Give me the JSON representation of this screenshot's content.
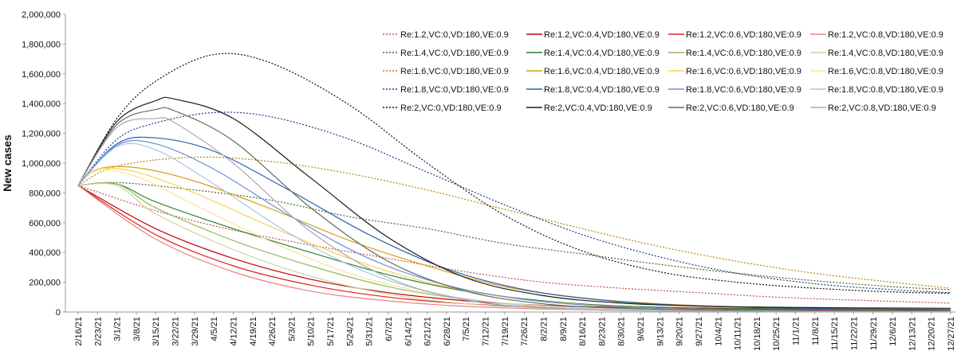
{
  "chart_data": {
    "type": "line",
    "title": "",
    "xlabel": "",
    "ylabel": "New cases",
    "ylim": [
      0,
      2000000
    ],
    "yticks": [
      0,
      200000,
      400000,
      600000,
      800000,
      1000000,
      1200000,
      1400000,
      1600000,
      1800000,
      2000000
    ],
    "ytick_labels": [
      "0",
      "200,000",
      "400,000",
      "600,000",
      "800,000",
      "1,000,000",
      "1,200,000",
      "1,400,000",
      "1,600,000",
      "1,800,000",
      "2,000,000"
    ],
    "x_tick_labels": [
      "2/16/21",
      "2/23/21",
      "3/1/21",
      "3/8/21",
      "3/15/21",
      "3/22/21",
      "3/29/21",
      "4/5/21",
      "4/12/21",
      "4/19/21",
      "4/26/21",
      "5/3/21",
      "5/10/21",
      "5/17/21",
      "5/24/21",
      "5/31/21",
      "6/7/21",
      "6/14/21",
      "6/21/21",
      "6/28/21",
      "7/5/21",
      "7/12/21",
      "7/19/21",
      "7/26/21",
      "8/2/21",
      "8/9/21",
      "8/16/21",
      "8/23/21",
      "8/30/21",
      "9/6/21",
      "9/13/21",
      "9/20/21",
      "9/27/21",
      "10/4/21",
      "10/11/21",
      "10/18/21",
      "10/25/21",
      "11/1/21",
      "11/8/21",
      "11/15/21",
      "11/22/21",
      "11/29/21",
      "12/6/21",
      "12/13/21",
      "12/20/21",
      "12/27/21"
    ],
    "grid": false,
    "legend_position": "top-right",
    "series": [
      {
        "name": "Re:1.2,VC:0,VD:180,VE:0.9",
        "color": "#c0504d",
        "dash": "dotted",
        "x": [
          "2/16/21",
          "3/15/21",
          "4/12/21",
          "5/10/21",
          "6/7/21",
          "7/5/21",
          "8/2/21",
          "8/30/21",
          "9/27/21",
          "10/25/21",
          "11/22/21",
          "12/27/21"
        ],
        "y": [
          850000,
          680000,
          550000,
          450000,
          360000,
          270000,
          200000,
          160000,
          130000,
          100000,
          80000,
          60000
        ]
      },
      {
        "name": "Re:1.2,VC:0.4,VD:180,VE:0.9",
        "color": "#c00000",
        "dash": "solid",
        "x": [
          "2/16/21",
          "3/15/21",
          "4/12/21",
          "5/10/21",
          "6/7/21",
          "7/5/21",
          "8/2/21",
          "8/30/21",
          "9/27/21",
          "10/25/21",
          "11/22/21",
          "12/27/21"
        ],
        "y": [
          850000,
          560000,
          360000,
          220000,
          130000,
          75000,
          45000,
          30000,
          22000,
          18000,
          15000,
          12000
        ]
      },
      {
        "name": "Re:1.2,VC:0.6,VD:180,VE:0.9",
        "color": "#e02020",
        "dash": "solid",
        "x": [
          "2/16/21",
          "3/15/21",
          "4/12/21",
          "5/10/21",
          "6/7/21",
          "7/5/21",
          "8/2/21",
          "8/30/21",
          "9/27/21",
          "10/25/21",
          "11/22/21",
          "12/27/21"
        ],
        "y": [
          850000,
          520000,
          310000,
          180000,
          100000,
          55000,
          32000,
          20000,
          15000,
          12000,
          10000,
          8000
        ]
      },
      {
        "name": "Re:1.2,VC:0.8,VD:180,VE:0.9",
        "color": "#f08080",
        "dash": "solid",
        "x": [
          "2/16/21",
          "3/15/21",
          "4/12/21",
          "5/10/21",
          "6/7/21",
          "7/5/21",
          "8/2/21",
          "8/30/21",
          "9/27/21",
          "10/25/21",
          "11/22/21",
          "12/27/21"
        ],
        "y": [
          850000,
          490000,
          270000,
          140000,
          75000,
          38000,
          20000,
          12000,
          8000,
          6000,
          5000,
          4000
        ]
      },
      {
        "name": "Re:1.4,VC:0,VD:180,VE:0.9",
        "color": "#4f6228",
        "dash": "dotted",
        "x": [
          "2/16/21",
          "3/1/21",
          "3/29/21",
          "4/26/21",
          "5/24/21",
          "6/21/21",
          "7/19/21",
          "8/16/21",
          "9/13/21",
          "10/11/21",
          "11/8/21",
          "12/6/21",
          "12/27/21"
        ],
        "y": [
          850000,
          870000,
          820000,
          750000,
          640000,
          560000,
          460000,
          390000,
          320000,
          260000,
          210000,
          170000,
          150000
        ]
      },
      {
        "name": "Re:1.4,VC:0.4,VD:180,VE:0.9",
        "color": "#2e7d32",
        "dash": "solid",
        "x": [
          "2/16/21",
          "3/1/21",
          "3/15/21",
          "4/12/21",
          "5/10/21",
          "6/7/21",
          "7/5/21",
          "8/2/21",
          "8/30/21",
          "9/27/21",
          "10/25/21",
          "11/22/21",
          "12/27/21"
        ],
        "y": [
          850000,
          860000,
          740000,
          560000,
          400000,
          250000,
          140000,
          75000,
          40000,
          28000,
          22000,
          18000,
          15000
        ]
      },
      {
        "name": "Re:1.4,VC:0.6,VD:180,VE:0.9",
        "color": "#8fbc5a",
        "dash": "solid",
        "x": [
          "2/16/21",
          "3/1/21",
          "3/15/21",
          "4/12/21",
          "5/10/21",
          "6/7/21",
          "7/5/21",
          "8/2/21",
          "8/30/21",
          "9/27/21",
          "10/25/21",
          "11/22/21",
          "12/27/21"
        ],
        "y": [
          850000,
          860000,
          700000,
          480000,
          310000,
          170000,
          85000,
          42000,
          22000,
          14000,
          10000,
          8000,
          6000
        ]
      },
      {
        "name": "Re:1.4,VC:0.8,VD:180,VE:0.9",
        "color": "#c4d79b",
        "dash": "solid",
        "x": [
          "2/16/21",
          "3/1/21",
          "3/15/21",
          "4/12/21",
          "5/10/21",
          "6/7/21",
          "7/5/21",
          "8/2/21",
          "8/30/21",
          "9/27/21",
          "10/25/21",
          "11/22/21",
          "12/27/21"
        ],
        "y": [
          850000,
          850000,
          660000,
          420000,
          240000,
          120000,
          55000,
          25000,
          12000,
          7000,
          5000,
          4000,
          3000
        ]
      },
      {
        "name": "Re:1.6,VC:0,VD:180,VE:0.9",
        "color": "#b8860b",
        "dash": "dotted",
        "x": [
          "2/16/21",
          "3/1/21",
          "3/29/21",
          "4/26/21",
          "5/24/21",
          "6/21/21",
          "7/19/21",
          "8/16/21",
          "9/13/21",
          "10/11/21",
          "11/8/21",
          "12/6/21",
          "12/27/21"
        ],
        "y": [
          850000,
          980000,
          1040000,
          1010000,
          930000,
          820000,
          690000,
          560000,
          440000,
          340000,
          260000,
          200000,
          160000
        ]
      },
      {
        "name": "Re:1.6,VC:0.4,VD:180,VE:0.9",
        "color": "#d4a017",
        "dash": "solid",
        "x": [
          "2/16/21",
          "2/23/21",
          "3/8/21",
          "3/29/21",
          "4/26/21",
          "5/24/21",
          "6/21/21",
          "7/19/21",
          "8/16/21",
          "9/13/21",
          "10/11/21",
          "11/8/21",
          "12/6/21",
          "12/27/21"
        ],
        "y": [
          850000,
          960000,
          970000,
          880000,
          690000,
          480000,
          310000,
          170000,
          95000,
          55000,
          35000,
          25000,
          20000,
          17000
        ]
      },
      {
        "name": "Re:1.6,VC:0.6,VD:180,VE:0.9",
        "color": "#f3d54e",
        "dash": "solid",
        "x": [
          "2/16/21",
          "2/23/21",
          "3/8/21",
          "3/29/21",
          "4/26/21",
          "5/24/21",
          "6/21/21",
          "7/19/21",
          "8/16/21",
          "9/13/21",
          "10/11/21",
          "11/8/21",
          "12/6/21",
          "12/27/21"
        ],
        "y": [
          850000,
          960000,
          940000,
          800000,
          570000,
          360000,
          200000,
          100000,
          50000,
          25000,
          15000,
          10000,
          8000,
          6000
        ]
      },
      {
        "name": "Re:1.6,VC:0.8,VD:180,VE:0.9",
        "color": "#fbe29a",
        "dash": "solid",
        "x": [
          "2/16/21",
          "2/23/21",
          "3/8/21",
          "3/29/21",
          "4/26/21",
          "5/24/21",
          "6/21/21",
          "7/19/21",
          "8/16/21",
          "9/13/21",
          "10/11/21",
          "11/8/21",
          "12/6/21",
          "12/27/21"
        ],
        "y": [
          850000,
          950000,
          910000,
          720000,
          470000,
          260000,
          130000,
          60000,
          28000,
          14000,
          8000,
          6000,
          5000,
          4000
        ]
      },
      {
        "name": "Re:1.8,VC:0,VD:180,VE:0.9",
        "color": "#1f3c88",
        "dash": "dotted",
        "x": [
          "2/16/21",
          "3/1/21",
          "3/15/21",
          "4/5/21",
          "4/26/21",
          "5/24/21",
          "6/21/21",
          "7/19/21",
          "8/16/21",
          "9/13/21",
          "10/11/21",
          "11/8/21",
          "12/6/21",
          "12/27/21"
        ],
        "y": [
          850000,
          1160000,
          1270000,
          1340000,
          1310000,
          1160000,
          940000,
          720000,
          520000,
          370000,
          260000,
          190000,
          150000,
          130000
        ]
      },
      {
        "name": "Re:1.8,VC:0.4,VD:180,VE:0.9",
        "color": "#2e5fa8",
        "dash": "solid",
        "x": [
          "2/16/21",
          "3/1/21",
          "3/15/21",
          "4/5/21",
          "5/3/21",
          "5/31/21",
          "6/28/21",
          "7/26/21",
          "8/23/21",
          "9/20/21",
          "10/18/21",
          "11/15/21",
          "12/13/21",
          "12/27/21"
        ],
        "y": [
          850000,
          1130000,
          1170000,
          1080000,
          810000,
          520000,
          290000,
          150000,
          80000,
          45000,
          30000,
          22000,
          18000,
          16000
        ]
      },
      {
        "name": "Re:1.8,VC:0.6,VD:180,VE:0.9",
        "color": "#6b8fd6",
        "dash": "solid",
        "x": [
          "2/16/21",
          "3/1/21",
          "3/15/21",
          "4/5/21",
          "5/3/21",
          "5/31/21",
          "6/28/21",
          "7/26/21",
          "8/23/21",
          "9/20/21",
          "10/18/21",
          "11/15/21",
          "12/13/21",
          "12/27/21"
        ],
        "y": [
          850000,
          1120000,
          1130000,
          960000,
          640000,
          360000,
          180000,
          85000,
          40000,
          20000,
          12000,
          9000,
          7000,
          6000
        ]
      },
      {
        "name": "Re:1.8,VC:0.8,VD:180,VE:0.9",
        "color": "#aac4e8",
        "dash": "solid",
        "x": [
          "2/16/21",
          "3/1/21",
          "3/15/21",
          "4/5/21",
          "5/3/21",
          "5/31/21",
          "6/28/21",
          "7/26/21",
          "8/23/21",
          "9/20/21",
          "10/18/21",
          "11/15/21",
          "12/13/21",
          "12/27/21"
        ],
        "y": [
          850000,
          1110000,
          1090000,
          860000,
          520000,
          260000,
          110000,
          45000,
          18000,
          8000,
          5000,
          4000,
          3000,
          3000
        ]
      },
      {
        "name": "Re:2,VC:0,VD:180,VE:0.9",
        "color": "#111111",
        "dash": "dotted",
        "x": [
          "2/16/21",
          "3/1/21",
          "3/15/21",
          "4/5/21",
          "4/26/21",
          "5/24/21",
          "6/21/21",
          "7/19/21",
          "8/16/21",
          "9/13/21",
          "10/11/21",
          "11/8/21",
          "12/6/21",
          "12/27/21"
        ],
        "y": [
          850000,
          1300000,
          1550000,
          1730000,
          1670000,
          1390000,
          1000000,
          650000,
          410000,
          270000,
          200000,
          160000,
          135000,
          125000
        ]
      },
      {
        "name": "Re:2,VC:0.4,VD:180,VE:0.9",
        "color": "#1a1a1a",
        "dash": "solid",
        "x": [
          "2/16/21",
          "3/1/21",
          "3/15/21",
          "3/22/21",
          "4/12/21",
          "5/10/21",
          "6/7/21",
          "7/5/21",
          "8/2/21",
          "8/30/21",
          "9/27/21",
          "10/25/21",
          "11/22/21",
          "12/27/21"
        ],
        "y": [
          850000,
          1280000,
          1420000,
          1430000,
          1300000,
          900000,
          500000,
          230000,
          110000,
          60000,
          40000,
          32000,
          28000,
          25000
        ]
      },
      {
        "name": "Re:2,VC:0.6,VD:180,VE:0.9",
        "color": "#666666",
        "dash": "solid",
        "x": [
          "2/16/21",
          "3/1/21",
          "3/15/21",
          "3/22/21",
          "4/12/21",
          "5/10/21",
          "6/7/21",
          "7/5/21",
          "8/2/21",
          "8/30/21",
          "9/27/21",
          "10/25/21",
          "11/22/21",
          "12/27/21"
        ],
        "y": [
          850000,
          1260000,
          1360000,
          1350000,
          1150000,
          700000,
          340000,
          140000,
          55000,
          25000,
          14000,
          10000,
          8000,
          7000
        ]
      },
      {
        "name": "Re:2,VC:0.8,VD:180,VE:0.9",
        "color": "#aaaaaa",
        "dash": "solid",
        "x": [
          "2/16/21",
          "3/1/21",
          "3/15/21",
          "3/22/21",
          "4/12/21",
          "5/10/21",
          "6/7/21",
          "7/5/21",
          "8/2/21",
          "8/30/21",
          "9/27/21",
          "10/25/21",
          "11/22/21",
          "12/27/21"
        ],
        "y": [
          850000,
          1240000,
          1300000,
          1270000,
          1000000,
          540000,
          230000,
          80000,
          28000,
          10000,
          5000,
          4000,
          3000,
          3000
        ]
      }
    ]
  }
}
